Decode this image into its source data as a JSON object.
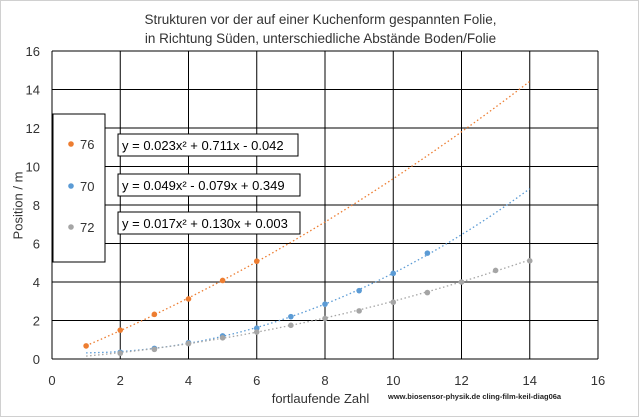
{
  "chart_data": {
    "type": "scatter",
    "title_line1": "Strukturen vor der auf einer Kuchenform gespannten Folie,",
    "title_line2": "in Richtung Süden, unterschiedliche Abstände   Boden/Folie",
    "xlabel": "fortlaufende Zahl",
    "ylabel": "Position / m",
    "xlim": [
      0,
      16
    ],
    "ylim": [
      0,
      16
    ],
    "xticks": [
      0,
      2,
      4,
      6,
      8,
      10,
      12,
      14,
      16
    ],
    "yticks": [
      0,
      2,
      4,
      6,
      8,
      10,
      12,
      14,
      16
    ],
    "grid": true,
    "legend_position": "left",
    "credit": "www.biosensor-physik.de  cling-film-keil-diag06a",
    "series": [
      {
        "name": "76",
        "color": "#ED7D31",
        "x": [
          1,
          2,
          3,
          4,
          5,
          6
        ],
        "y": [
          0.68,
          1.5,
          2.32,
          3.12,
          4.08,
          5.08
        ],
        "trend": {
          "a": 0.023,
          "b": 0.711,
          "c": -0.042,
          "x_range": [
            1,
            14
          ]
        },
        "equation": "y = 0.023x² + 0.711x - 0.042"
      },
      {
        "name": "70",
        "color": "#5B9BD5",
        "x": [
          2,
          3,
          4,
          5,
          6,
          7,
          8,
          9,
          10,
          11
        ],
        "y": [
          0.35,
          0.55,
          0.85,
          1.2,
          1.6,
          2.2,
          2.85,
          3.55,
          4.45,
          5.5
        ],
        "trend": {
          "a": 0.049,
          "b": -0.079,
          "c": 0.349,
          "x_range": [
            1,
            14
          ]
        },
        "equation": "y = 0.049x² - 0.079x + 0.349"
      },
      {
        "name": "72",
        "color": "#A5A5A5",
        "x": [
          2,
          3,
          4,
          5,
          6,
          7,
          8,
          9,
          10,
          11,
          12,
          13,
          14
        ],
        "y": [
          0.3,
          0.5,
          0.8,
          1.1,
          1.4,
          1.75,
          2.1,
          2.5,
          2.95,
          3.45,
          4.0,
          4.6,
          5.1
        ],
        "trend": {
          "a": 0.017,
          "b": 0.13,
          "c": 0.003,
          "x_range": [
            1,
            14
          ]
        },
        "equation": "y = 0.017x² + 0.130x + 0.003"
      }
    ]
  }
}
